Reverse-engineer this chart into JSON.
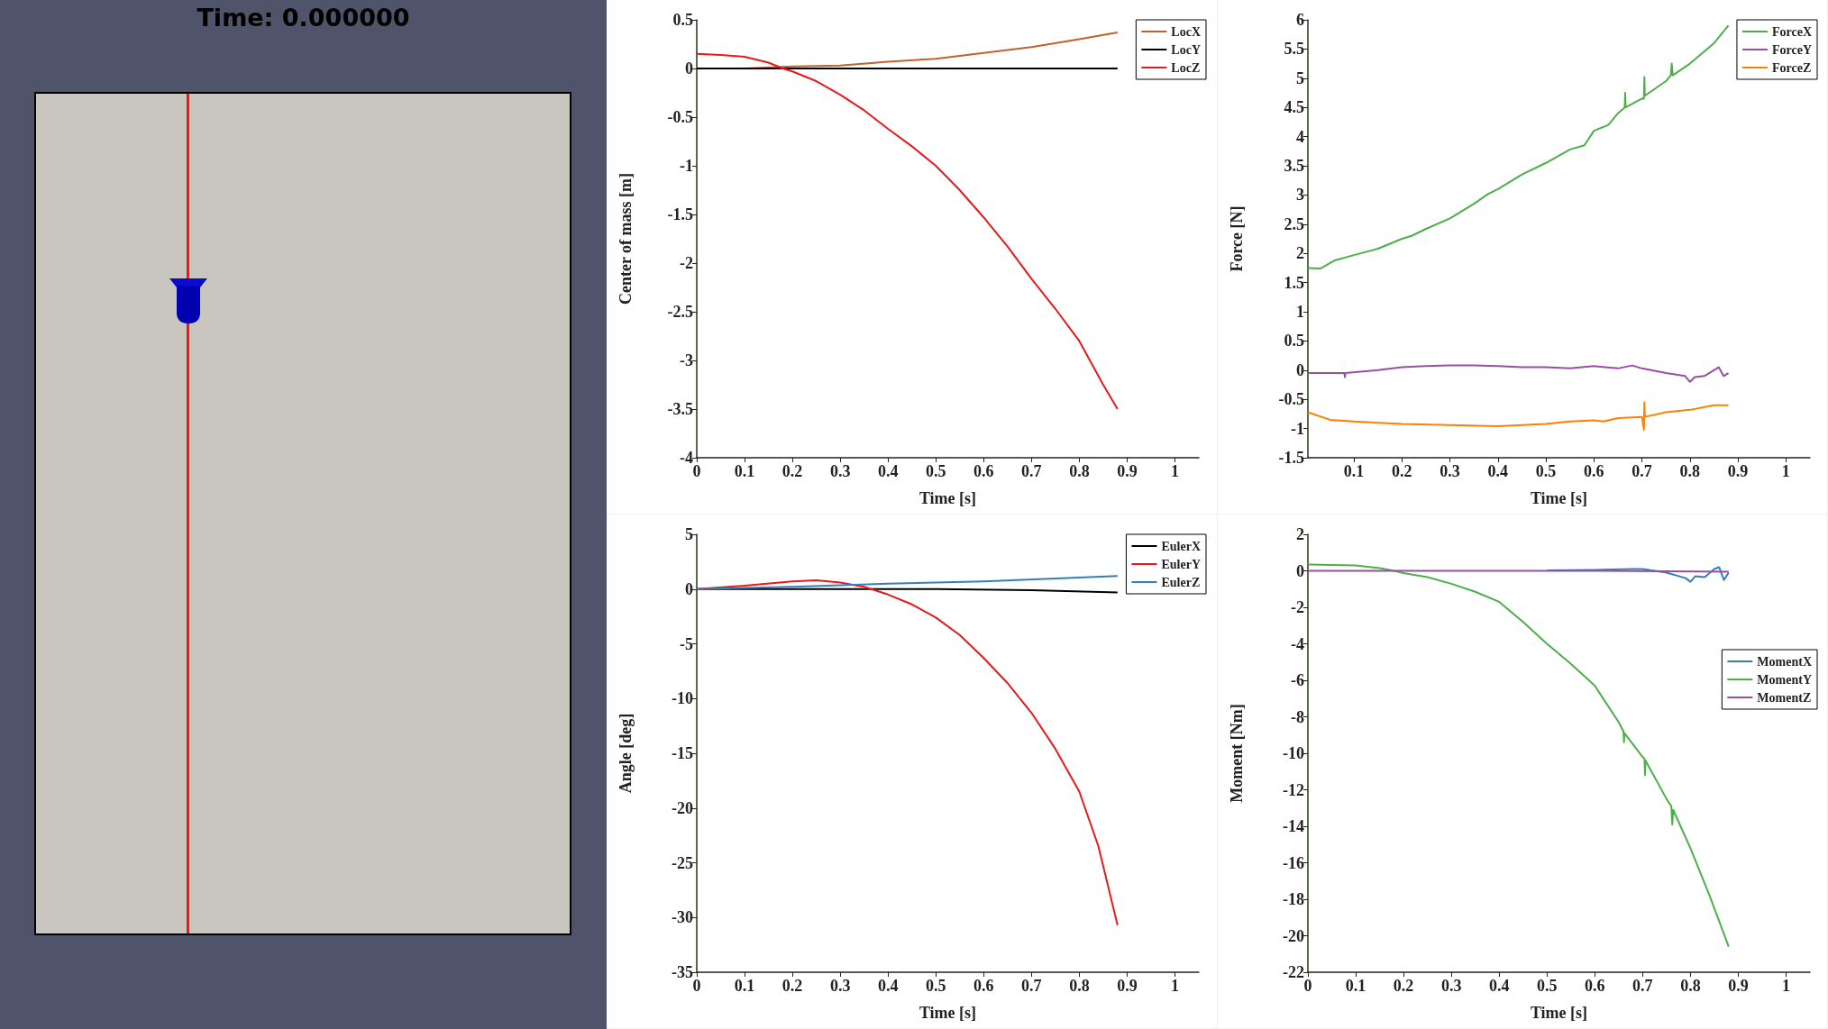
{
  "chart_data": [
    {
      "type": "other",
      "title": "Time: 0.000000"
    },
    {
      "type": "line",
      "xlabel": "Time [s]",
      "ylabel": "Center of mass [m]",
      "xlim": [
        0,
        1.05
      ],
      "xticks": [
        0,
        0.1,
        0.2,
        0.3,
        0.4,
        0.5,
        0.6,
        0.7,
        0.8,
        0.9,
        1
      ],
      "ylim": [
        -4,
        0.5
      ],
      "yticks": [
        -4,
        -3.5,
        -3,
        -2.5,
        -2,
        -1.5,
        -1,
        -0.5,
        0,
        0.5
      ],
      "grid": false,
      "legend": "top right",
      "marker": "none",
      "line_style": "solid",
      "series": [
        {
          "name": "LocX",
          "color": "#c0622a",
          "x": [
            0,
            0.1,
            0.2,
            0.3,
            0.4,
            0.5,
            0.6,
            0.7,
            0.8,
            0.88
          ],
          "values": [
            0,
            0,
            0.02,
            0.03,
            0.07,
            0.1,
            0.16,
            0.22,
            0.3,
            0.37
          ]
        },
        {
          "name": "LocY",
          "color": "#000000",
          "x": [
            0,
            0.2,
            0.4,
            0.6,
            0.88
          ],
          "values": [
            0,
            0,
            0,
            0,
            0
          ]
        },
        {
          "name": "LocZ",
          "color": "#e41a1c",
          "x": [
            0,
            0.05,
            0.1,
            0.15,
            0.18,
            0.2,
            0.25,
            0.3,
            0.35,
            0.4,
            0.45,
            0.5,
            0.55,
            0.6,
            0.65,
            0.7,
            0.75,
            0.8,
            0.85,
            0.88
          ],
          "values": [
            0.15,
            0.14,
            0.12,
            0.06,
            0,
            -0.03,
            -0.13,
            -0.27,
            -0.43,
            -0.62,
            -0.8,
            -1.0,
            -1.25,
            -1.53,
            -1.83,
            -2.16,
            -2.47,
            -2.8,
            -3.25,
            -3.5
          ]
        }
      ]
    },
    {
      "type": "line",
      "xlabel": "Time [s]",
      "ylabel": "Force [N]",
      "xlim": [
        0.004,
        1.05
      ],
      "xticks": [
        0.1,
        0.2,
        0.3,
        0.4,
        0.5,
        0.6,
        0.7,
        0.8,
        0.9,
        1
      ],
      "ylim": [
        -1.5,
        6
      ],
      "yticks": [
        -1.5,
        -1,
        -0.5,
        0,
        0.5,
        1,
        1.5,
        2,
        2.5,
        3,
        3.5,
        4,
        4.5,
        5,
        5.5,
        6
      ],
      "grid": false,
      "legend": "top right",
      "marker": "none",
      "line_style": "solid",
      "series": [
        {
          "name": "ForceX",
          "color": "#4daf4a",
          "x": [
            0.004,
            0.03,
            0.06,
            0.1,
            0.15,
            0.2,
            0.22,
            0.25,
            0.3,
            0.35,
            0.38,
            0.4,
            0.45,
            0.5,
            0.55,
            0.58,
            0.6,
            0.63,
            0.65,
            0.664,
            0.665,
            0.666,
            0.7,
            0.704,
            0.705,
            0.706,
            0.75,
            0.76,
            0.762,
            0.764,
            0.8,
            0.85,
            0.88
          ],
          "values": [
            1.75,
            1.74,
            1.88,
            1.97,
            2.08,
            2.25,
            2.3,
            2.42,
            2.6,
            2.85,
            3.02,
            3.1,
            3.35,
            3.55,
            3.78,
            3.85,
            4.1,
            4.2,
            4.4,
            4.5,
            4.75,
            4.5,
            4.65,
            4.65,
            5.02,
            4.7,
            4.95,
            5.05,
            5.25,
            5.05,
            5.25,
            5.6,
            5.9
          ]
        },
        {
          "name": "ForceY",
          "color": "#984ea3",
          "x": [
            0.004,
            0.08,
            0.081,
            0.082,
            0.15,
            0.2,
            0.25,
            0.3,
            0.35,
            0.4,
            0.45,
            0.5,
            0.55,
            0.6,
            0.65,
            0.68,
            0.7,
            0.75,
            0.79,
            0.8,
            0.81,
            0.83,
            0.85,
            0.86,
            0.87,
            0.88
          ],
          "values": [
            -0.05,
            -0.05,
            -0.12,
            -0.05,
            0,
            0.05,
            0.07,
            0.08,
            0.08,
            0.07,
            0.05,
            0.05,
            0.03,
            0.07,
            0.03,
            0.08,
            0.03,
            -0.05,
            -0.1,
            -0.2,
            -0.12,
            -0.1,
            0,
            0.05,
            -0.1,
            -0.05
          ]
        },
        {
          "name": "ForceZ",
          "color": "#ff7f00",
          "x": [
            0.004,
            0.05,
            0.1,
            0.2,
            0.3,
            0.4,
            0.45,
            0.5,
            0.55,
            0.6,
            0.62,
            0.65,
            0.7,
            0.704,
            0.705,
            0.706,
            0.75,
            0.8,
            0.85,
            0.88
          ],
          "values": [
            -0.72,
            -0.85,
            -0.88,
            -0.92,
            -0.94,
            -0.96,
            -0.94,
            -0.92,
            -0.88,
            -0.86,
            -0.88,
            -0.82,
            -0.8,
            -1.02,
            -0.55,
            -0.8,
            -0.72,
            -0.68,
            -0.6,
            -0.6
          ]
        }
      ]
    },
    {
      "type": "line",
      "xlabel": "Time [s]",
      "ylabel": "Angle [deg]",
      "xlim": [
        0,
        1.05
      ],
      "xticks": [
        0,
        0.1,
        0.2,
        0.3,
        0.4,
        0.5,
        0.6,
        0.7,
        0.8,
        0.9,
        1
      ],
      "ylim": [
        -35,
        5
      ],
      "yticks": [
        -35,
        -30,
        -25,
        -20,
        -15,
        -10,
        -5,
        0,
        5
      ],
      "grid": false,
      "legend": "top right",
      "marker": "none",
      "line_style": "solid",
      "series": [
        {
          "name": "EulerX",
          "color": "#000000",
          "x": [
            0,
            0.2,
            0.35,
            0.5,
            0.7,
            0.88
          ],
          "values": [
            0,
            0,
            0,
            0,
            -0.1,
            -0.3
          ]
        },
        {
          "name": "EulerY",
          "color": "#e41a1c",
          "x": [
            0,
            0.1,
            0.2,
            0.25,
            0.3,
            0.35,
            0.4,
            0.45,
            0.5,
            0.55,
            0.6,
            0.65,
            0.7,
            0.75,
            0.8,
            0.84,
            0.88
          ],
          "values": [
            0,
            0.3,
            0.7,
            0.8,
            0.6,
            0.2,
            -0.5,
            -1.4,
            -2.6,
            -4.2,
            -6.3,
            -8.6,
            -11.3,
            -14.6,
            -18.5,
            -23.5,
            -30.7
          ]
        },
        {
          "name": "EulerZ",
          "color": "#377eb8",
          "x": [
            0,
            0.2,
            0.4,
            0.6,
            0.88
          ],
          "values": [
            0,
            0.2,
            0.5,
            0.7,
            1.2
          ]
        }
      ]
    },
    {
      "type": "line",
      "xlabel": "Time [s]",
      "ylabel": "Moment [Nm]",
      "xlim": [
        0,
        1.05
      ],
      "xticks": [
        0,
        0.1,
        0.2,
        0.3,
        0.4,
        0.5,
        0.6,
        0.7,
        0.8,
        0.9,
        1
      ],
      "ylim": [
        -22,
        2
      ],
      "yticks": [
        -22,
        -20,
        -18,
        -16,
        -14,
        -12,
        -10,
        -8,
        -6,
        -4,
        -2,
        0,
        2
      ],
      "grid": false,
      "legend": "right",
      "marker": "none",
      "line_style": "solid",
      "series": [
        {
          "name": "MomentX",
          "color": "#377eb8",
          "x": [
            0.5,
            0.6,
            0.68,
            0.7,
            0.75,
            0.79,
            0.8,
            0.81,
            0.83,
            0.85,
            0.86,
            0.87,
            0.88
          ],
          "values": [
            0.02,
            0.05,
            0.1,
            0.1,
            -0.1,
            -0.4,
            -0.6,
            -0.3,
            -0.35,
            0.1,
            0.2,
            -0.5,
            -0.1
          ]
        },
        {
          "name": "MomentY",
          "color": "#4daf4a",
          "x": [
            0,
            0.1,
            0.15,
            0.18,
            0.2,
            0.25,
            0.3,
            0.35,
            0.4,
            0.45,
            0.5,
            0.55,
            0.6,
            0.65,
            0.66,
            0.661,
            0.662,
            0.7,
            0.704,
            0.705,
            0.706,
            0.75,
            0.76,
            0.762,
            0.764,
            0.8,
            0.84,
            0.88
          ],
          "values": [
            0.35,
            0.3,
            0.15,
            0,
            -0.12,
            -0.35,
            -0.71,
            -1.15,
            -1.7,
            -2.8,
            -4.0,
            -5.1,
            -6.3,
            -8.3,
            -8.8,
            -9.4,
            -8.9,
            -10.2,
            -10.3,
            -11.2,
            -10.4,
            -12.5,
            -12.9,
            -13.9,
            -13.1,
            -15.2,
            -17.8,
            -20.6
          ]
        },
        {
          "name": "MomentZ",
          "color": "#984ea3",
          "x": [
            0,
            0.3,
            0.6,
            0.88
          ],
          "values": [
            0,
            0,
            0,
            -0.05
          ]
        }
      ]
    }
  ]
}
